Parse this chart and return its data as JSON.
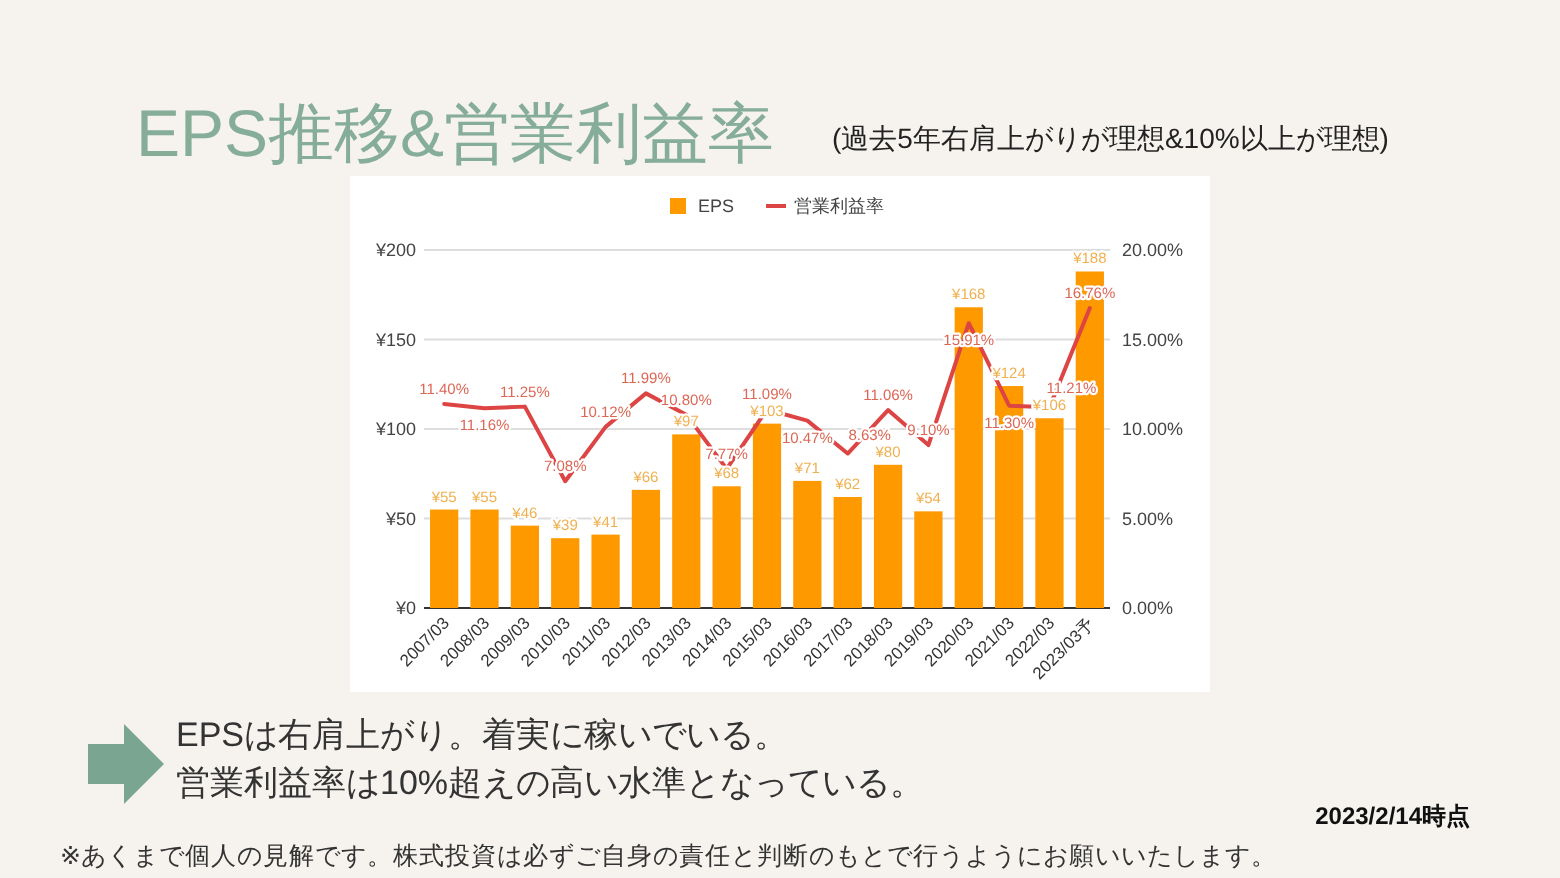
{
  "chart_data": {
    "type": "bar",
    "title": "EPS推移&営業利益率",
    "subtitle": "(過去5年右肩上がりが理想&10%以上が理想)",
    "categories": [
      "2007/03",
      "2008/03",
      "2009/03",
      "2010/03",
      "2011/03",
      "2012/03",
      "2013/03",
      "2014/03",
      "2015/03",
      "2016/03",
      "2017/03",
      "2018/03",
      "2019/03",
      "2020/03",
      "2021/03",
      "2022/03",
      "2023/03予"
    ],
    "series": [
      {
        "name": "EPS",
        "color": "#ff9900",
        "values": [
          55,
          55,
          46,
          39,
          41,
          66,
          97,
          68,
          103,
          71,
          62,
          80,
          54,
          168,
          124,
          106,
          188
        ],
        "value_labels": [
          "¥55",
          "¥55",
          "¥46",
          "¥39",
          "¥41",
          "¥66",
          "¥97",
          "¥68",
          "¥103",
          "¥71",
          "¥62",
          "¥80",
          "¥54",
          "¥168",
          "¥124",
          "¥106",
          "¥188"
        ]
      },
      {
        "name": "営業利益率",
        "type": "line",
        "axis": "y2",
        "color": "#dd4444",
        "values": [
          11.4,
          11.16,
          11.25,
          7.08,
          10.12,
          11.99,
          10.8,
          7.77,
          11.09,
          10.47,
          8.63,
          11.06,
          9.1,
          15.91,
          11.3,
          11.21,
          16.76
        ],
        "value_labels": [
          "11.40%",
          "11.16%",
          "11.25%",
          "7.08%",
          "10.12%",
          "11.99%",
          "10.80%",
          "7.77%",
          "11.09%",
          "10.47%",
          "8.63%",
          "11.06%",
          "9.10%",
          "15.91%",
          "11.30%",
          "11.21%",
          "16.76%"
        ]
      }
    ],
    "ylim": [
      0,
      200
    ],
    "yticks": [
      {
        "value": 0,
        "label": "¥0"
      },
      {
        "value": 50,
        "label": "¥50"
      },
      {
        "value": 100,
        "label": "¥100"
      },
      {
        "value": 150,
        "label": "¥150"
      },
      {
        "value": 200,
        "label": "¥200"
      }
    ],
    "y2lim": [
      0,
      20
    ],
    "y2ticks": [
      {
        "value": 0,
        "label": "0.00%"
      },
      {
        "value": 5,
        "label": "5.00%"
      },
      {
        "value": 10,
        "label": "10.00%"
      },
      {
        "value": 15,
        "label": "15.00%"
      },
      {
        "value": 20,
        "label": "20.00%"
      }
    ],
    "grid": "y",
    "legend": "top",
    "line_style": "solid",
    "annotations": [
      "EPSは右肩上がり。着実に稼いでいる。",
      "営業利益率は10%超えの高い水準となっている。",
      "2023/2/14時点",
      "※あくまで個人の見解です。株式投資は必ずご自身の責任と判断のもとで行うようにお願いいたします。"
    ]
  }
}
